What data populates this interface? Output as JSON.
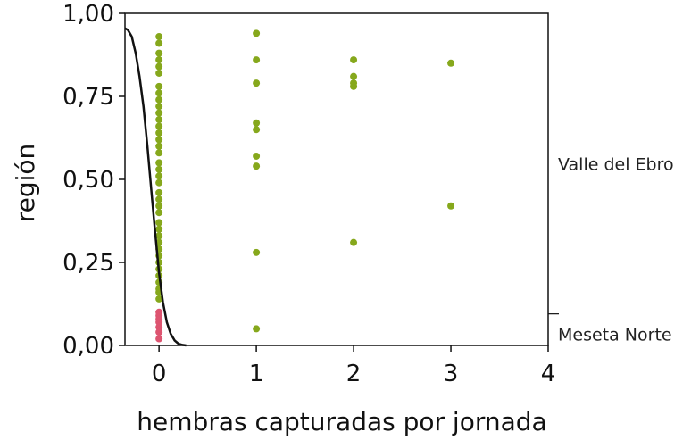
{
  "chart_data": {
    "type": "scatter",
    "title": "",
    "xlabel": "hembras capturadas por jornada",
    "ylabel": "región",
    "xlim": [
      -0.35,
      4
    ],
    "ylim": [
      0,
      1
    ],
    "x_ticks": [
      "0",
      "1",
      "2",
      "3",
      "4"
    ],
    "y_ticks": [
      "0,00",
      "0,25",
      "0,50",
      "0,75",
      "1,00"
    ],
    "grid": false,
    "categories": [
      "Valle del Ebro",
      "Meseta Norte"
    ],
    "category_boundary": 0.095,
    "colors": {
      "Valle del Ebro": "#86a81c",
      "Meseta Norte": "#dd5470",
      "curve": "#111111"
    },
    "series": [
      {
        "name": "Valle del Ebro",
        "points": [
          [
            0,
            0.93
          ],
          [
            0,
            0.91
          ],
          [
            0,
            0.88
          ],
          [
            0,
            0.86
          ],
          [
            0,
            0.84
          ],
          [
            0,
            0.82
          ],
          [
            0,
            0.78
          ],
          [
            0,
            0.76
          ],
          [
            0,
            0.74
          ],
          [
            0,
            0.72
          ],
          [
            0,
            0.7
          ],
          [
            0,
            0.68
          ],
          [
            0,
            0.66
          ],
          [
            0,
            0.64
          ],
          [
            0,
            0.62
          ],
          [
            0,
            0.6
          ],
          [
            0,
            0.58
          ],
          [
            0,
            0.55
          ],
          [
            0,
            0.53
          ],
          [
            0,
            0.51
          ],
          [
            0,
            0.49
          ],
          [
            0,
            0.46
          ],
          [
            0,
            0.44
          ],
          [
            0,
            0.42
          ],
          [
            0,
            0.4
          ],
          [
            0,
            0.37
          ],
          [
            0,
            0.35
          ],
          [
            0,
            0.33
          ],
          [
            0,
            0.31
          ],
          [
            0,
            0.29
          ],
          [
            0,
            0.27
          ],
          [
            0,
            0.25
          ],
          [
            0,
            0.23
          ],
          [
            0,
            0.21
          ],
          [
            0,
            0.19
          ],
          [
            0,
            0.17
          ],
          [
            0,
            0.16
          ],
          [
            0,
            0.14
          ],
          [
            1,
            0.94
          ],
          [
            1,
            0.86
          ],
          [
            1,
            0.79
          ],
          [
            1,
            0.67
          ],
          [
            1,
            0.65
          ],
          [
            1,
            0.57
          ],
          [
            1,
            0.54
          ],
          [
            1,
            0.28
          ],
          [
            1,
            0.05
          ],
          [
            2,
            0.86
          ],
          [
            2,
            0.81
          ],
          [
            2,
            0.79
          ],
          [
            2,
            0.78
          ],
          [
            2,
            0.31
          ],
          [
            3,
            0.85
          ],
          [
            3,
            0.42
          ]
        ]
      },
      {
        "name": "Meseta Norte",
        "points": [
          [
            0,
            0.1
          ],
          [
            0,
            0.09
          ],
          [
            0,
            0.08
          ],
          [
            0,
            0.07
          ],
          [
            0,
            0.055
          ],
          [
            0,
            0.04
          ],
          [
            0,
            0.02
          ]
        ]
      }
    ],
    "curve": {
      "type": "logistic",
      "points": [
        [
          -0.35,
          0.955
        ],
        [
          -0.32,
          0.95
        ],
        [
          -0.28,
          0.93
        ],
        [
          -0.24,
          0.88
        ],
        [
          -0.2,
          0.81
        ],
        [
          -0.16,
          0.72
        ],
        [
          -0.12,
          0.6
        ],
        [
          -0.08,
          0.47
        ],
        [
          -0.04,
          0.34
        ],
        [
          0.0,
          0.22
        ],
        [
          0.04,
          0.13
        ],
        [
          0.08,
          0.07
        ],
        [
          0.12,
          0.035
        ],
        [
          0.16,
          0.015
        ],
        [
          0.2,
          0.005
        ],
        [
          0.24,
          0.0015
        ],
        [
          0.28,
          0.0
        ]
      ]
    }
  }
}
